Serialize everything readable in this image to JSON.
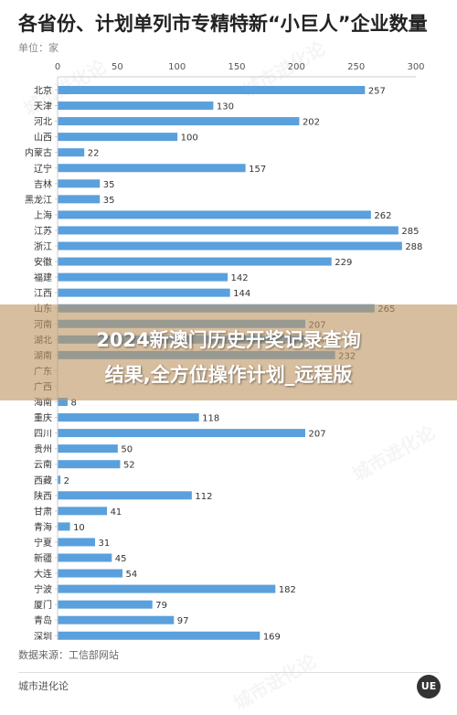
{
  "header": {
    "title": "各省份、计划单列市专精特新“小巨人”企业数量",
    "unit": "单位：家"
  },
  "banner": {
    "line1": "2024新澳门历史开奖记录查询",
    "line2": "结果,全方位操作计划_远程版"
  },
  "footer": {
    "source": "数据来源：工信部网站",
    "brand": "城市进化论",
    "logo": "UE"
  },
  "watermark": "城市进化论",
  "colors": {
    "bar": "#5aa0dc",
    "axis": "#cccccc",
    "banner": "#be9664"
  },
  "chart_data": {
    "type": "bar",
    "orientation": "horizontal",
    "xlim": [
      0,
      300
    ],
    "xticks": [
      0,
      50,
      100,
      150,
      200,
      250,
      300
    ],
    "categories": [
      "北京",
      "天津",
      "河北",
      "山西",
      "内蒙古",
      "辽宁",
      "吉林",
      "黑龙江",
      "上海",
      "江苏",
      "浙江",
      "安徽",
      "福建",
      "江西",
      "山东",
      "河南",
      "湖北",
      "湖南",
      "广东",
      "广西",
      "海南",
      "重庆",
      "四川",
      "贵州",
      "云南",
      "西藏",
      "陕西",
      "甘肃",
      "青海",
      "宁夏",
      "新疆",
      "大连",
      "宁波",
      "厦门",
      "青岛",
      "深圳"
    ],
    "values": [
      257,
      130,
      202,
      100,
      22,
      157,
      35,
      35,
      262,
      285,
      288,
      229,
      142,
      144,
      265,
      207,
      207,
      232,
      null,
      null,
      8,
      118,
      207,
      50,
      52,
      2,
      112,
      41,
      10,
      31,
      45,
      54,
      182,
      79,
      97,
      169
    ],
    "grid": false,
    "legend": "none"
  }
}
